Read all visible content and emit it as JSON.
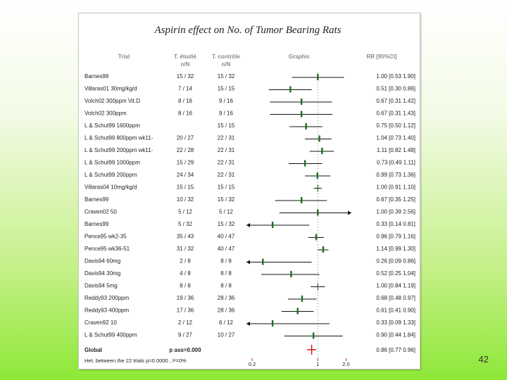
{
  "page_number": "42",
  "chart_data": {
    "type": "forest",
    "title": "Aspirin effect on No. of Tumor Bearing Rats",
    "columns": {
      "trial": "Trial",
      "treated": "T. étudié",
      "treated_sub": "n/N",
      "control": "T. contrôle",
      "control_sub": "n/N",
      "graphic": "Graphic",
      "rr": "RR [95%CI]"
    },
    "x_scale": "log",
    "x_ticks": [
      "0.2",
      "1",
      "2.0"
    ],
    "x_ticks_values": [
      0.2,
      1,
      2.0
    ],
    "xlim": [
      0.18,
      2.2
    ],
    "rows": [
      {
        "trial": "Barnes99",
        "t": "15 / 32",
        "c": "15 / 32",
        "rr": 1.0,
        "lo": 0.53,
        "hi": 1.9,
        "ci_text": "1.00 [0.53 1.90]",
        "marker": "tick"
      },
      {
        "trial": "Villaras01 30mg/kg/d",
        "t": "7 / 14",
        "c": "15 / 15",
        "rr": 0.51,
        "lo": 0.3,
        "hi": 0.86,
        "ci_text": "0.51 [0.30 0.86]",
        "marker": "tick"
      },
      {
        "trial": "Volch02 300ppm Vit.D",
        "t": "8 / 16",
        "c": "9 / 16",
        "rr": 0.67,
        "lo": 0.31,
        "hi": 1.42,
        "ci_text": "0.67 [0.31 1.42]",
        "marker": "tick"
      },
      {
        "trial": "Volch02 300ppm",
        "t": "8 / 16",
        "c": "9 / 16",
        "rr": 0.67,
        "lo": 0.31,
        "hi": 1.43,
        "ci_text": "0.67 [0.31 1.43]",
        "marker": "tick"
      },
      {
        "trial": "L & Schut99 1600ppm",
        "t": "",
        "c": "15 / 15",
        "rr": 0.75,
        "lo": 0.5,
        "hi": 1.12,
        "ci_text": "0.75 [0.50 1.12]",
        "marker": "tick"
      },
      {
        "trial": "L & Schut99 800ppm wk11-",
        "t": "20 / 27",
        "c": "22 / 31",
        "rr": 1.04,
        "lo": 0.73,
        "hi": 1.4,
        "ci_text": "1.04 [0.73 1.40]",
        "marker": "tick"
      },
      {
        "trial": "L & Schut99 200ppm wk11-",
        "t": "22 / 28",
        "c": "22 / 31",
        "rr": 1.11,
        "lo": 0.82,
        "hi": 1.48,
        "ci_text": "1.11 [0.82 1.48]",
        "marker": "tick"
      },
      {
        "trial": "L & Schut99 1000ppm",
        "t": "15 / 29",
        "c": "22 / 31",
        "rr": 0.73,
        "lo": 0.49,
        "hi": 1.11,
        "ci_text": "0.73 [0.49 1.11]",
        "marker": "tick"
      },
      {
        "trial": "L & Schut99 200ppm",
        "t": "24 / 34",
        "c": "22 / 31",
        "rr": 0.99,
        "lo": 0.73,
        "hi": 1.36,
        "ci_text": "0.99 [0.73 1.36]",
        "marker": "tick"
      },
      {
        "trial": "Villaras04 10mg/kg/d",
        "t": "15 / 15",
        "c": "15 / 15",
        "rr": 1.0,
        "lo": 0.91,
        "hi": 1.1,
        "ci_text": "1.00 [0.91 1.10]",
        "marker": "cross"
      },
      {
        "trial": "Barnes99",
        "t": "10 / 32",
        "c": "15 / 32",
        "rr": 0.67,
        "lo": 0.35,
        "hi": 1.25,
        "ci_text": "0.67 [0.35 1.25]",
        "marker": "tick"
      },
      {
        "trial": "Craven02 50",
        "t": "5 / 12",
        "c": "5 / 12",
        "rr": 1.0,
        "lo": 0.39,
        "hi": 2.56,
        "ci_text": "1.00 [0.39 2.56]",
        "marker": "tick",
        "arrow_right": true
      },
      {
        "trial": "Barnes99",
        "t": "5 / 32",
        "c": "15 / 32",
        "rr": 0.33,
        "lo": 0.14,
        "hi": 0.81,
        "ci_text": "0.33 [0.14 0.81]",
        "marker": "tick",
        "arrow_left": true
      },
      {
        "trial": "Pence95 wk2-35",
        "t": "35 / 43",
        "c": "40 / 47",
        "rr": 0.96,
        "lo": 0.79,
        "hi": 1.16,
        "ci_text": "0.96 [0.79 1.16]",
        "marker": "tick"
      },
      {
        "trial": "Pence95 wk36-51",
        "t": "31 / 32",
        "c": "40 / 47",
        "rr": 1.14,
        "lo": 0.99,
        "hi": 1.3,
        "ci_text": "1.14 [0.99 1.30]",
        "marker": "tick"
      },
      {
        "trial": "Davis94 60mg",
        "t": "2 / 8",
        "c": "8 / 8",
        "rr": 0.26,
        "lo": 0.09,
        "hi": 0.86,
        "ci_text": "0.26 [0.09 0.86]",
        "marker": "tick",
        "arrow_left": true
      },
      {
        "trial": "Davis94 30mg",
        "t": "4 / 8",
        "c": "8 / 8",
        "rr": 0.52,
        "lo": 0.25,
        "hi": 1.04,
        "ci_text": "0.52 [0.25 1.04]",
        "marker": "tick"
      },
      {
        "trial": "Davis94 5mg",
        "t": "8 / 8",
        "c": "8 / 8",
        "rr": 1.0,
        "lo": 0.84,
        "hi": 1.19,
        "ci_text": "1.00 [0.84 1.19]",
        "marker": "cross"
      },
      {
        "trial": "Reddy93 200ppm",
        "t": "19 / 36",
        "c": "28 / 36",
        "rr": 0.68,
        "lo": 0.48,
        "hi": 0.97,
        "ci_text": "0.68 [0.48 0.97]",
        "marker": "tick"
      },
      {
        "trial": "Reddy93 400ppm",
        "t": "17 / 36",
        "c": "28 / 36",
        "rr": 0.61,
        "lo": 0.41,
        "hi": 0.9,
        "ci_text": "0.61 [0.41 0.90]",
        "marker": "tick"
      },
      {
        "trial": "Craven92 10",
        "t": "2 / 12",
        "c": "6 / 12",
        "rr": 0.33,
        "lo": 0.09,
        "hi": 1.33,
        "ci_text": "0.33 [0.09 1.33]",
        "marker": "tick",
        "arrow_left": true
      },
      {
        "trial": "L & Schut99 400ppm",
        "t": "9 / 27",
        "c": "10 / 27",
        "rr": 0.9,
        "lo": 0.44,
        "hi": 1.84,
        "ci_text": "0.90 [0.44 1.84]",
        "marker": "tick"
      }
    ],
    "global": {
      "trial": "Global",
      "t": "p ass=0.000",
      "rr": 0.86,
      "lo": 0.77,
      "hi": 0.96,
      "ci_text": "0.86 [0.77 0.96]"
    },
    "heterogeneity": "Het. between the 22 trials p=0.0000 , I²=0%",
    "colors": {
      "estimate": "#1f6e1f",
      "global": "#d11a1a",
      "axis_ticks": "#d11a1a",
      "text": "#222222",
      "header": "#8a8a8a"
    }
  }
}
